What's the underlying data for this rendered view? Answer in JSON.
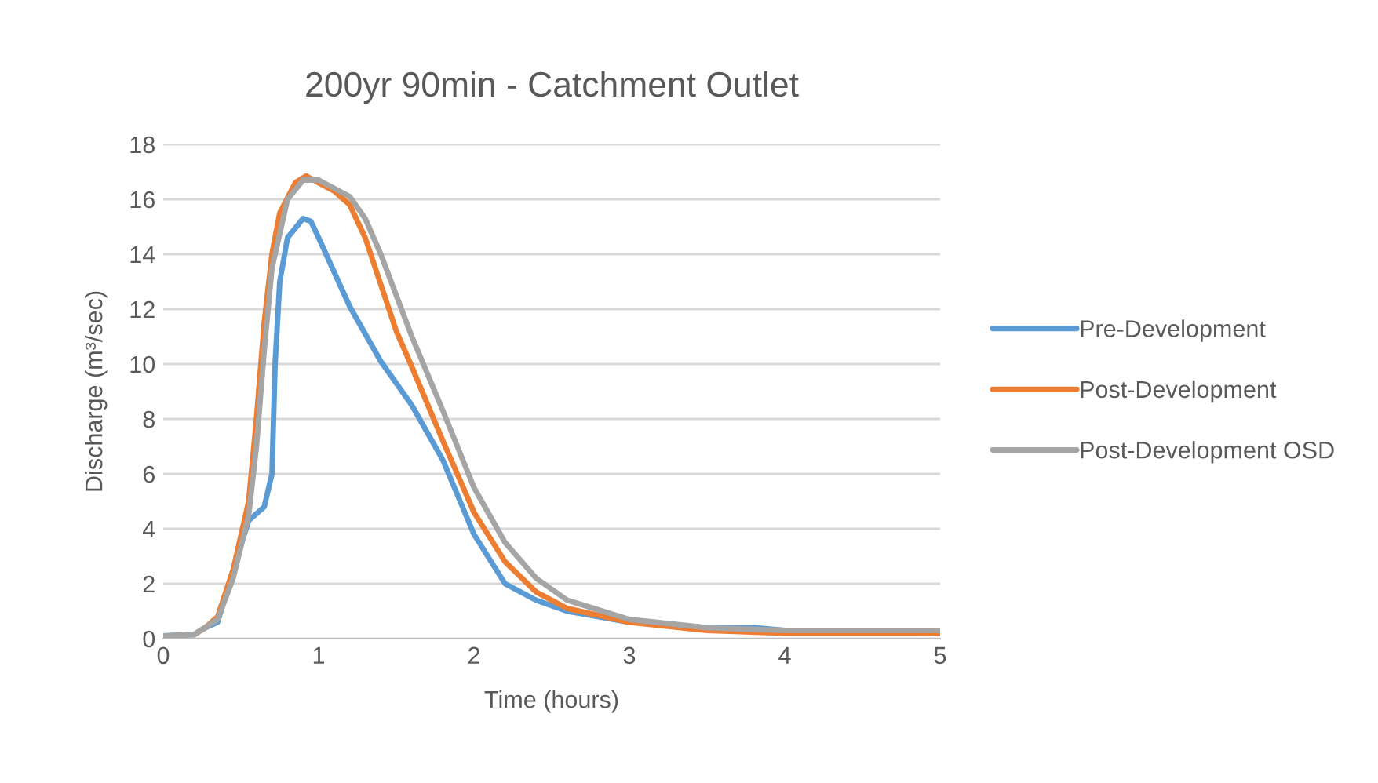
{
  "chart_data": {
    "type": "line",
    "title": "200yr 90min - Catchment Outlet",
    "xlabel": "Time (hours)",
    "ylabel": "Discharge (m³/sec)",
    "xlim": [
      0,
      5
    ],
    "xticks": [
      0,
      1,
      2,
      3,
      4,
      5
    ],
    "ylim": [
      0,
      18
    ],
    "yticks": [
      0,
      2,
      4,
      6,
      8,
      10,
      12,
      14,
      16,
      18
    ],
    "grid": "y",
    "legend": "right",
    "marker": "none",
    "line_style": "solid",
    "series": [
      {
        "name": "Pre-Development",
        "color": "#5b9bd5",
        "x": [
          0,
          0.2,
          0.27,
          0.35,
          0.45,
          0.55,
          0.65,
          0.7,
          0.72,
          0.75,
          0.8,
          0.9,
          0.95,
          1.0,
          1.2,
          1.4,
          1.6,
          1.8,
          2.0,
          2.2,
          2.4,
          2.6,
          3.0,
          3.5,
          3.8,
          4.0,
          5.0
        ],
        "values": [
          0.1,
          0.15,
          0.4,
          0.6,
          2.5,
          4.3,
          4.8,
          6,
          10,
          13,
          14.6,
          15.3,
          15.2,
          14.6,
          12.1,
          10.1,
          8.5,
          6.5,
          3.8,
          2.0,
          1.4,
          1.0,
          0.6,
          0.4,
          0.4,
          0.3,
          0.2
        ]
      },
      {
        "name": "Post-Development",
        "color": "#ed7d31",
        "x": [
          0.2,
          0.27,
          0.35,
          0.45,
          0.55,
          0.6,
          0.65,
          0.7,
          0.75,
          0.85,
          0.92,
          1.0,
          1.1,
          1.2,
          1.3,
          1.4,
          1.5,
          1.6,
          1.8,
          2.0,
          2.2,
          2.4,
          2.6,
          3.0,
          3.5,
          4.0,
          5.0
        ],
        "values": [
          0.15,
          0.4,
          0.8,
          2.5,
          5,
          8,
          11.5,
          14,
          15.5,
          16.6,
          16.85,
          16.6,
          16.3,
          15.8,
          14.6,
          12.9,
          11.2,
          9.9,
          7.2,
          4.6,
          2.8,
          1.7,
          1.1,
          0.6,
          0.3,
          0.2,
          0.2
        ]
      },
      {
        "name": "Post-Development OSD",
        "color": "#a5a5a5",
        "x": [
          0,
          0.2,
          0.27,
          0.35,
          0.45,
          0.55,
          0.6,
          0.65,
          0.7,
          0.8,
          0.9,
          1.0,
          1.1,
          1.2,
          1.3,
          1.4,
          1.5,
          1.6,
          1.8,
          2.0,
          2.2,
          2.4,
          2.6,
          3.0,
          3.5,
          4.0,
          5.0
        ],
        "values": [
          0.1,
          0.15,
          0.4,
          0.7,
          2.2,
          4.5,
          7,
          10.5,
          13.5,
          16,
          16.7,
          16.7,
          16.4,
          16.1,
          15.3,
          14,
          12.5,
          11,
          8.3,
          5.5,
          3.5,
          2.2,
          1.4,
          0.7,
          0.4,
          0.3,
          0.3
        ]
      }
    ]
  }
}
